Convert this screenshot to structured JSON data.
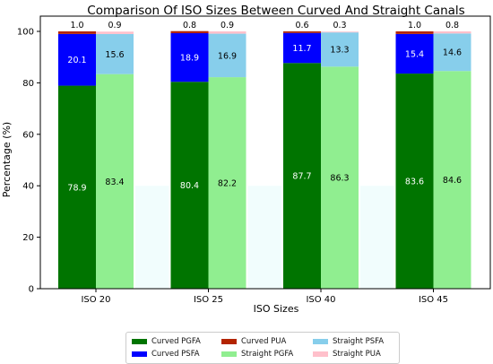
{
  "chart_data": {
    "type": "bar",
    "title": "Comparison Of ISO Sizes Between Curved And Straight Canals",
    "xlabel": "ISO Sizes",
    "ylabel": "Percentage (%)",
    "ylim": [
      0,
      100
    ],
    "yticks": [
      0,
      20,
      40,
      60,
      80,
      100
    ],
    "categories": [
      "ISO 20",
      "ISO 25",
      "ISO 40",
      "ISO 45"
    ],
    "groups": [
      {
        "name": "Curved",
        "series": [
          {
            "name": "Curved PGFA",
            "color": "#007400",
            "values": [
              78.9,
              80.4,
              87.7,
              83.6
            ]
          },
          {
            "name": "Curved PSFA",
            "color": "#0000ff",
            "values": [
              20.1,
              18.9,
              11.7,
              15.4
            ]
          },
          {
            "name": "Curved PUA",
            "color": "#b32400",
            "values": [
              1.0,
              0.8,
              0.6,
              1.0
            ]
          }
        ]
      },
      {
        "name": "Straight",
        "series": [
          {
            "name": "Straight PGFA",
            "color": "#90ee90",
            "values": [
              83.4,
              82.2,
              86.3,
              84.6
            ]
          },
          {
            "name": "Straight PSFA",
            "color": "#87ceeb",
            "values": [
              15.6,
              16.9,
              13.3,
              14.6
            ]
          },
          {
            "name": "Straight PUA",
            "color": "#ffc0cb",
            "values": [
              0.9,
              0.9,
              0.3,
              0.8
            ]
          }
        ]
      }
    ],
    "legend": {
      "position": "bottom-center",
      "items": [
        {
          "label": "Curved PGFA",
          "color": "#007400"
        },
        {
          "label": "Curved PUA",
          "color": "#b32400"
        },
        {
          "label": "Straight PSFA",
          "color": "#87ceeb"
        },
        {
          "label": "Curved PSFA",
          "color": "#0000ff"
        },
        {
          "label": "Straight PGFA",
          "color": "#90ee90"
        },
        {
          "label": "Straight PUA",
          "color": "#ffc0cb"
        }
      ]
    },
    "grid": false
  }
}
